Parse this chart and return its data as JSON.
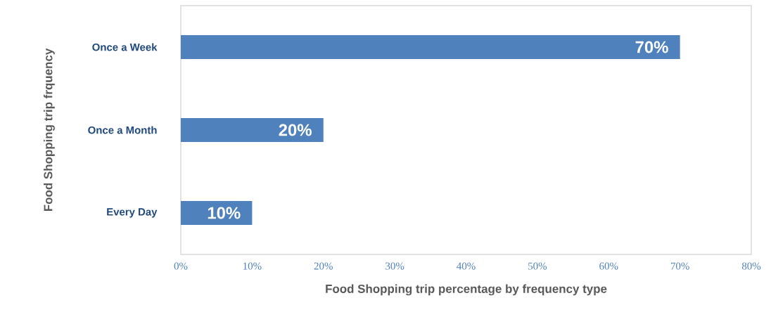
{
  "chart_data": {
    "type": "bar",
    "orientation": "horizontal",
    "xlabel": "Food Shopping trip percentage by frequency type",
    "ylabel": "Food Shopping trip frquency",
    "categories": [
      "Once a Week",
      "Once a Month",
      "Every Day"
    ],
    "values": [
      70,
      20,
      10
    ],
    "value_labels": [
      "70%",
      "20%",
      "10%"
    ],
    "color": "#4f81bd",
    "xlim": [
      0,
      80
    ],
    "xticks": [
      {
        "value": 0,
        "label": "0%"
      },
      {
        "value": 10,
        "label": "10%"
      },
      {
        "value": 20,
        "label": "20%"
      },
      {
        "value": 30,
        "label": "30%"
      },
      {
        "value": 40,
        "label": "40%"
      },
      {
        "value": 50,
        "label": "50%"
      },
      {
        "value": 60,
        "label": "60%"
      },
      {
        "value": 70,
        "label": "70%"
      },
      {
        "value": 80,
        "label": "80%"
      }
    ]
  }
}
